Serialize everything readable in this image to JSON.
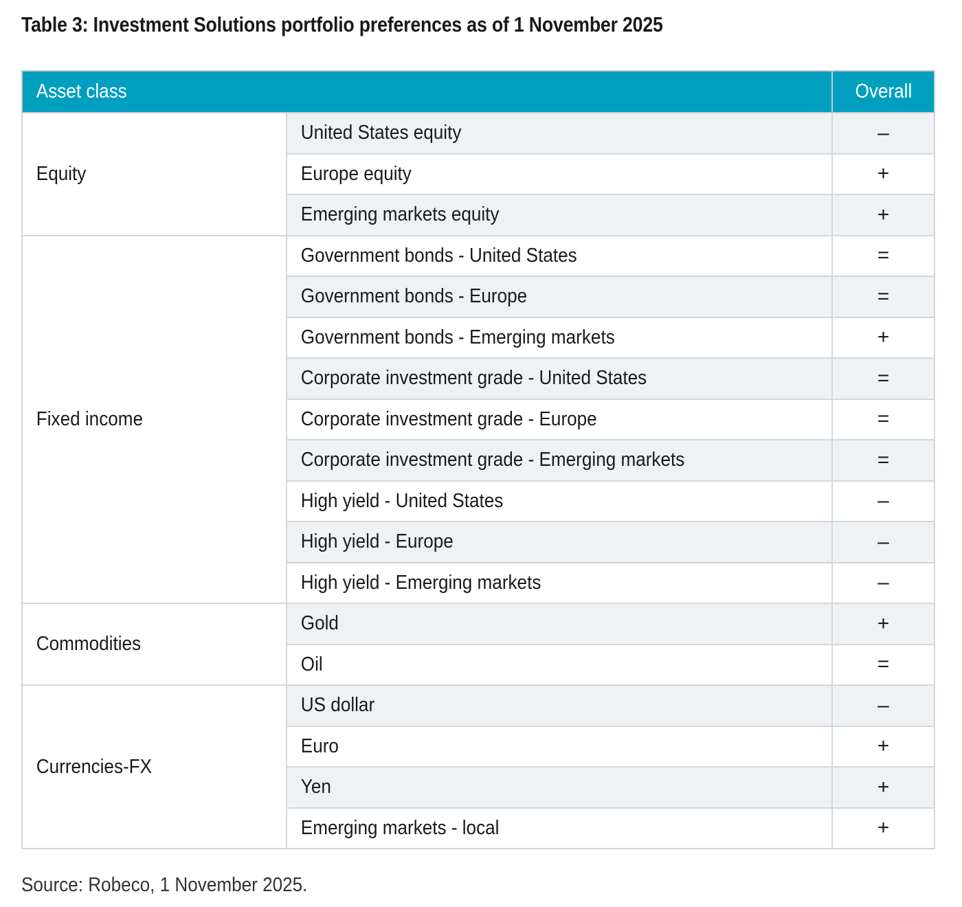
{
  "title": "Table 3: Investment Solutions portfolio preferences as of 1 November 2025",
  "header": {
    "asset_class": "Asset class",
    "overall": "Overall"
  },
  "groups": [
    {
      "name": "Equity",
      "rows": [
        {
          "label": "United States equity",
          "value": "–"
        },
        {
          "label": "Europe equity",
          "value": "+"
        },
        {
          "label": "Emerging markets equity",
          "value": "+"
        }
      ]
    },
    {
      "name": "Fixed income",
      "rows": [
        {
          "label": "Government bonds - United States",
          "value": "="
        },
        {
          "label": "Government bonds - Europe",
          "value": "="
        },
        {
          "label": "Government bonds - Emerging markets",
          "value": "+"
        },
        {
          "label": "Corporate investment grade - United States",
          "value": "="
        },
        {
          "label": "Corporate investment grade - Europe",
          "value": "="
        },
        {
          "label": "Corporate investment grade - Emerging markets",
          "value": "="
        },
        {
          "label": "High yield - United States",
          "value": "–"
        },
        {
          "label": "High yield - Europe",
          "value": "–"
        },
        {
          "label": "High yield - Emerging markets",
          "value": "–"
        }
      ]
    },
    {
      "name": "Commodities",
      "rows": [
        {
          "label": "Gold",
          "value": "+"
        },
        {
          "label": "Oil",
          "value": "="
        }
      ]
    },
    {
      "name": "Currencies-FX",
      "rows": [
        {
          "label": "US dollar",
          "value": "–"
        },
        {
          "label": "Euro",
          "value": "+"
        },
        {
          "label": "Yen",
          "value": "+"
        },
        {
          "label": "Emerging markets - local",
          "value": "+"
        }
      ]
    }
  ],
  "source": "Source: Robeco, 1 November 2025.",
  "colors": {
    "header_bg": "#009fc0",
    "stripe": "#eef2f5",
    "border": "#c9ccd0"
  }
}
